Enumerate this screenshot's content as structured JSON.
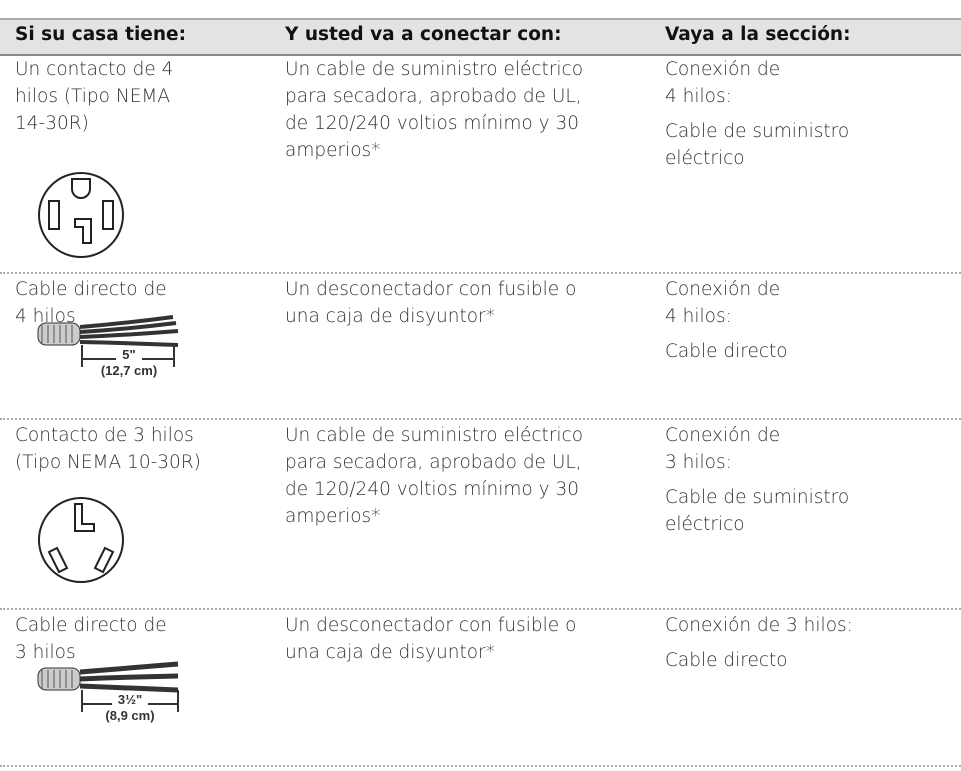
{
  "table": {
    "header": [
      "Si su casa tiene:",
      "Y usted va a conectar con:",
      "Vaya a la sección:"
    ],
    "rows": [
      {
        "setting": [
          "Un contacto de 4",
          "hilos (Tipo NEMA",
          "14-30R)"
        ],
        "connect": [
          "Un cable de suministro eléctrico",
          "para secadora, aprobado de UL,",
          "de 120/240 voltios mínimo y 30",
          "amperios*"
        ],
        "section": [
          [
            "Conexión de",
            "4 hilos:"
          ],
          [
            "Cable de suministro",
            "eléctrico"
          ]
        ]
      },
      {
        "setting": [
          "Cable directo de",
          "4 hilos"
        ],
        "dimension": [
          "5\"",
          "(12,7 cm)"
        ],
        "connect": [
          "Un desconectador con fusible o",
          "una caja de disyuntor*"
        ],
        "section": [
          [
            "Conexión de",
            "4 hilos:"
          ],
          [
            "Cable directo"
          ]
        ]
      },
      {
        "setting": [
          "Contacto de 3 hilos",
          "(Tipo NEMA 10-30R)"
        ],
        "connect": [
          "Un cable de suministro eléctrico",
          "para secadora, aprobado de UL,",
          "de 120/240 voltios mínimo y 30",
          "amperios*"
        ],
        "section": [
          [
            "Conexión de",
            "3 hilos:"
          ],
          [
            "Cable de suministro",
            "eléctrico"
          ]
        ]
      },
      {
        "setting": [
          "Cable directo de",
          "3 hilos"
        ],
        "dimension": [
          "3½\"",
          "(8,9 cm)"
        ],
        "connect": [
          "Un desconectador con fusible o",
          "una caja de disyuntor*"
        ],
        "section": [
          [
            "Conexión de 3 hilos:"
          ],
          [
            "Cable directo"
          ]
        ]
      }
    ]
  }
}
